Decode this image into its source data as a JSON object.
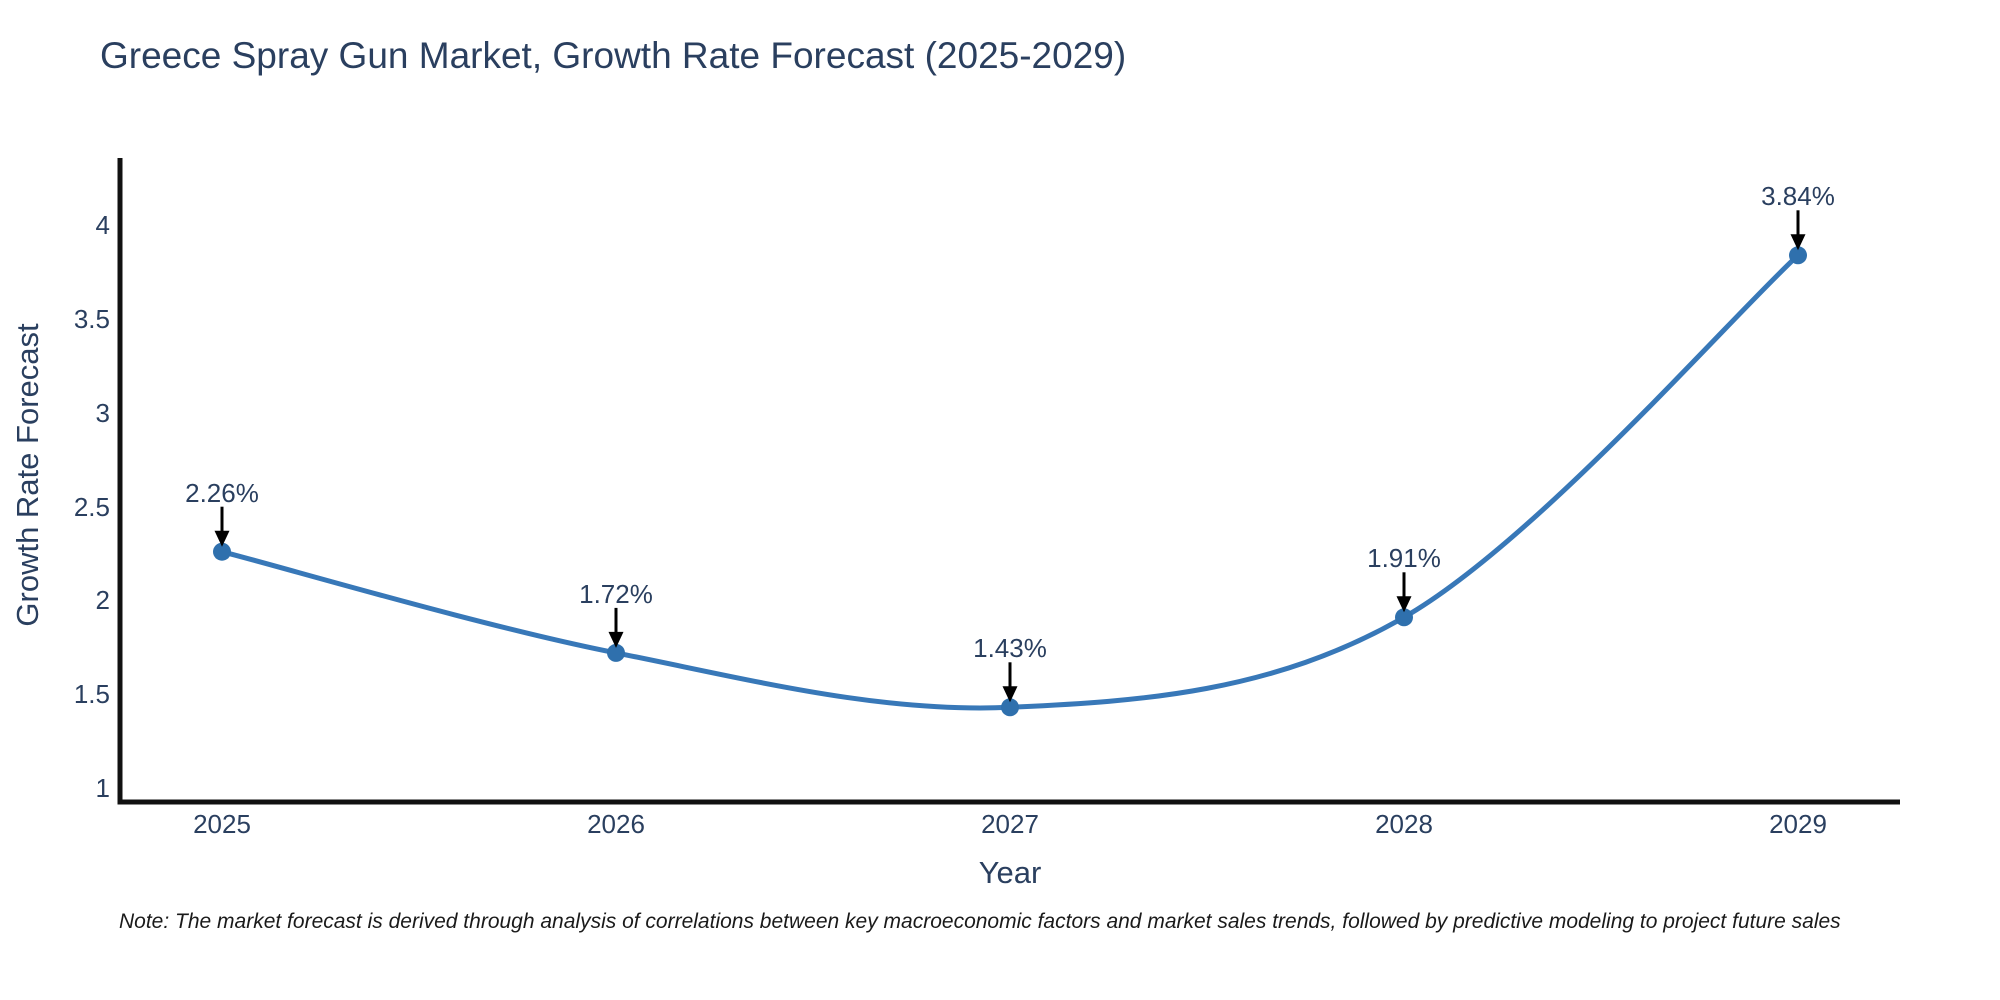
{
  "title": "Greece Spray Gun Market, Growth Rate Forecast (2025-2029)",
  "note": "Note: The market forecast is derived through analysis of correlations between key macroeconomic factors and market sales trends, followed by predictive modeling to project future sales",
  "chart_data": {
    "type": "line",
    "title": "Greece Spray Gun Market, Growth Rate Forecast (2025-2029)",
    "xlabel": "Year",
    "ylabel": "Growth Rate Forecast",
    "x": [
      2025,
      2026,
      2027,
      2028,
      2029
    ],
    "values": [
      2.26,
      1.72,
      1.43,
      1.91,
      3.84
    ],
    "point_labels": [
      "2.26%",
      "1.72%",
      "1.43%",
      "1.91%",
      "3.84%"
    ],
    "x_ticks": [
      "2025",
      "2026",
      "2027",
      "2028",
      "2029"
    ],
    "y_ticks": [
      "1",
      "1.5",
      "2",
      "2.5",
      "3",
      "3.5",
      "4"
    ],
    "y_tick_values": [
      1,
      1.5,
      2,
      2.5,
      3,
      3.5,
      4
    ],
    "xlim": [
      2024.74,
      2029.26
    ],
    "ylim": [
      0.92,
      4.36
    ],
    "grid": false,
    "legend": "none",
    "line_shape": "spline",
    "annotations": "arrow-down-to-point",
    "colors": {
      "line": "#3878b8",
      "marker": "#2f70ad",
      "axis": "#111111",
      "font": "#2a3f5f",
      "arrow": "#000000",
      "note_text": "#1a1a1a",
      "background": "#ffffff"
    }
  }
}
